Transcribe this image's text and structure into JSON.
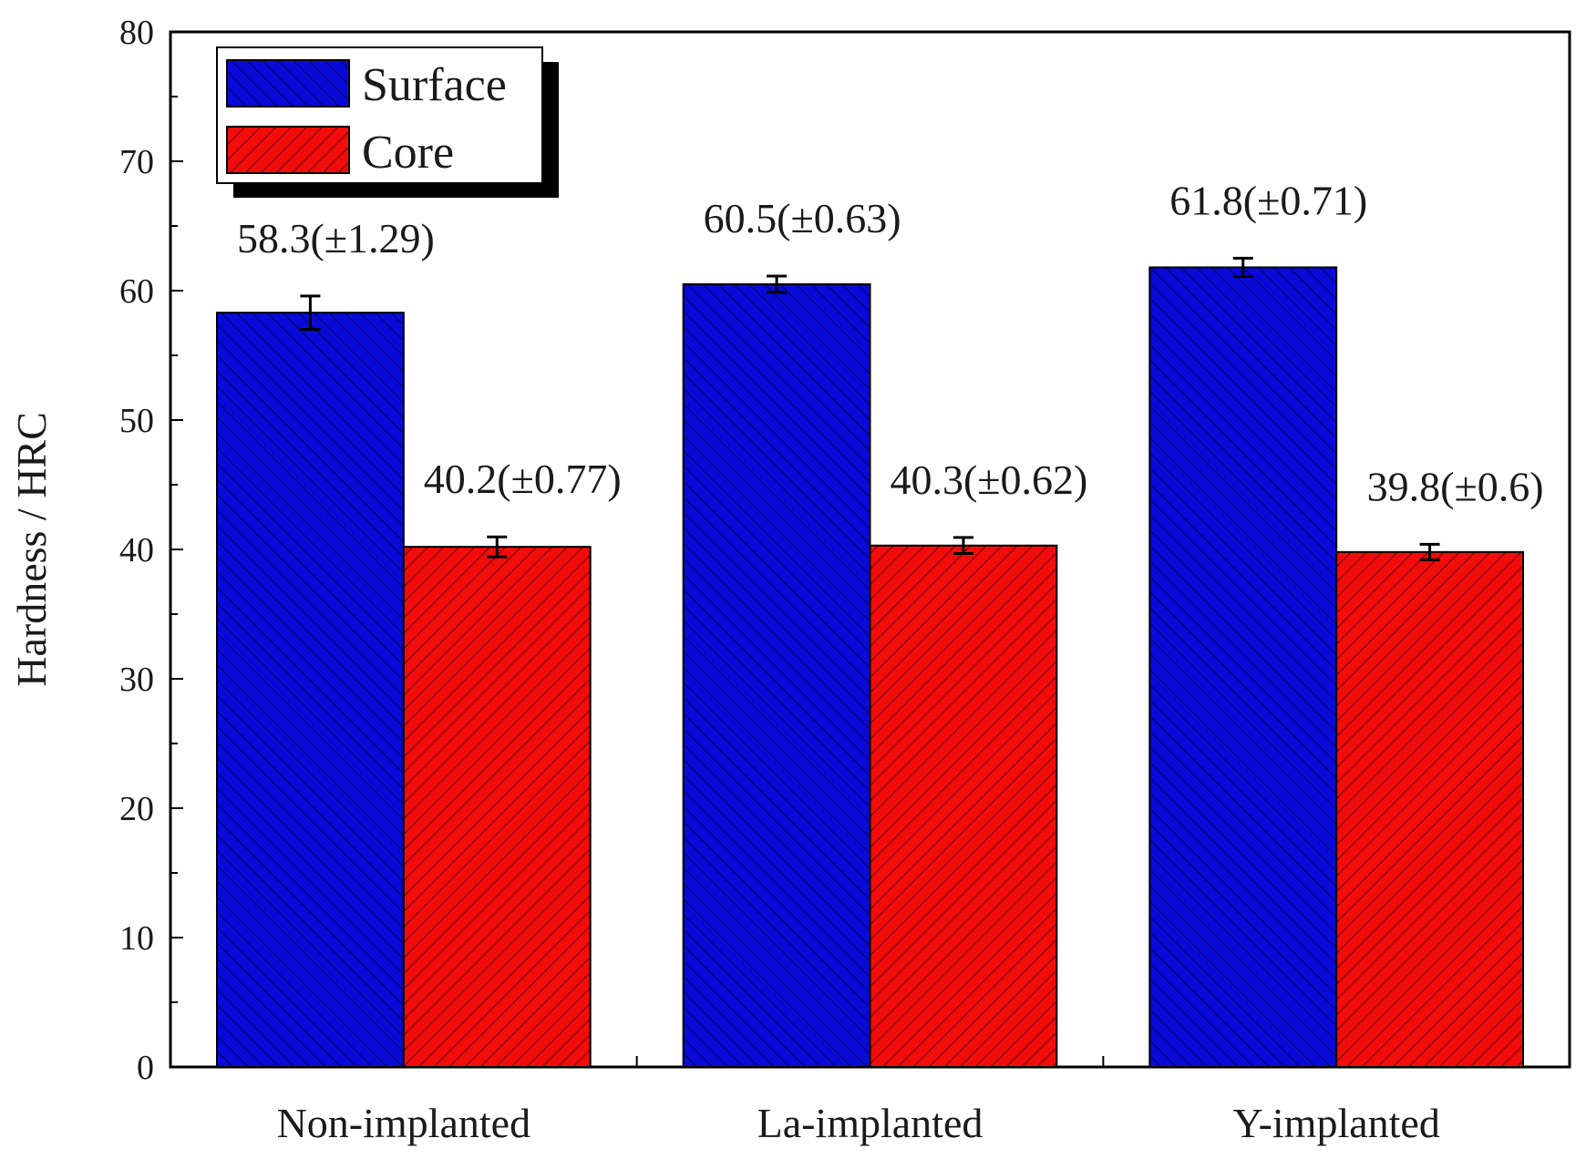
{
  "chart_data": {
    "type": "bar",
    "title": "",
    "xlabel": "",
    "ylabel": "Hardness / HRC",
    "ylim": [
      0,
      80
    ],
    "yticks": [
      0,
      10,
      20,
      30,
      40,
      50,
      60,
      70,
      80
    ],
    "categories": [
      "Non-implanted",
      "La-implanted",
      "Y-implanted"
    ],
    "series": [
      {
        "name": "Surface",
        "color": "#0a0ad8",
        "hatch_color": "#04047a",
        "values": [
          58.3,
          60.5,
          61.8
        ],
        "errors": [
          1.29,
          0.63,
          0.71
        ],
        "labels": [
          "58.3(±1.29)",
          "60.5(±0.63)",
          "61.8(±0.71)"
        ]
      },
      {
        "name": "Core",
        "color": "#f20c0c",
        "hatch_color": "#7a0000",
        "values": [
          40.2,
          40.3,
          39.8
        ],
        "errors": [
          0.77,
          0.62,
          0.6
        ],
        "labels": [
          "40.2(±0.77)",
          "40.3(±0.62)",
          "39.8(±0.6)"
        ]
      }
    ],
    "legend": {
      "position": "top-left"
    },
    "grid": false
  }
}
